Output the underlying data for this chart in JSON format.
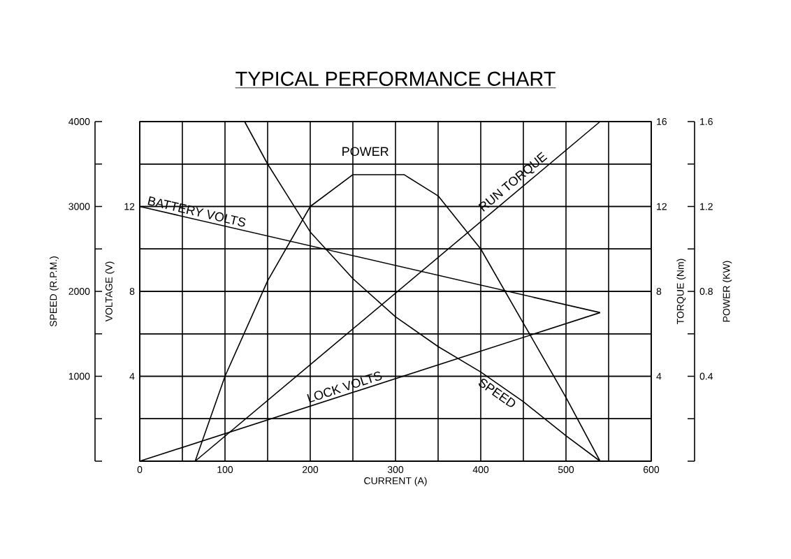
{
  "chart_data": [
    {
      "type": "line",
      "title": "TYPICAL PERFORMANCE CHART",
      "xlabel": "CURRENT (A)",
      "ylabel": "SPEED (R.P.M.)",
      "y2label": "VOLTAGE (V)",
      "xlim": [
        0,
        600
      ],
      "xticks": [
        0,
        {
          "value": 50,
          "label": null
        },
        100,
        {
          "value": 150,
          "label": null
        },
        200,
        {
          "value": 250,
          "label": null
        },
        300,
        {
          "value": 350,
          "label": null
        },
        400,
        {
          "value": 450,
          "label": null
        },
        500,
        {
          "value": 550,
          "label": null
        },
        600
      ],
      "ylim": [
        0,
        4000
      ],
      "yticks": [
        {
          "value": 0,
          "label": null
        },
        {
          "value": 500,
          "label": null
        },
        1000,
        {
          "value": 1500,
          "label": null
        },
        2000,
        {
          "value": 2500,
          "label": null
        },
        3000,
        {
          "value": 3500,
          "label": null
        },
        4000
      ],
      "y2lim": [
        0,
        16
      ],
      "y2ticks": [
        4,
        8,
        12
      ],
      "grid": true,
      "marker": "none",
      "line_style": "solid",
      "series": [
        {
          "name": "SPEED",
          "color": "#000000",
          "x": [
            123,
            150,
            200,
            250,
            300,
            350,
            400,
            450,
            500,
            540
          ],
          "values": [
            4000,
            3500,
            2700,
            2150,
            1700,
            1350,
            1050,
            700,
            300,
            0
          ]
        },
        {
          "name": "BATTERY VOLTS",
          "color": "#000000",
          "axis": "y2",
          "x": [
            0,
            540
          ],
          "values": [
            12,
            7
          ]
        },
        {
          "name": "LOCK VOLTS",
          "color": "#000000",
          "axis": "y2",
          "x": [
            0,
            540
          ],
          "values": [
            0,
            7
          ]
        }
      ]
    },
    {
      "type": "line",
      "ylabel": "POWER (KW)",
      "y2label": "TORQUE (Nm)",
      "tick_labels": "y",
      "grid": "y",
      "xlim": [
        0,
        600
      ],
      "ylim": [
        0,
        1.6
      ],
      "yticks": [
        {
          "value": 0,
          "label": null
        },
        {
          "value": 0.2,
          "label": null
        },
        0.4,
        {
          "value": 0.6,
          "label": null
        },
        0.8,
        {
          "value": 1.0,
          "label": null
        },
        1.2,
        {
          "value": 1.4,
          "label": null
        },
        1.6
      ],
      "y2lim": [
        0,
        16
      ],
      "y2ticks": [
        4,
        8,
        12,
        16
      ],
      "marker": "none",
      "line_style": "solid",
      "series": [
        {
          "name": "RUN TORQUE",
          "color": "#000000",
          "axis": "y2",
          "x": [
            65,
            540
          ],
          "values": [
            0,
            16
          ]
        },
        {
          "name": "POWER",
          "color": "#000000",
          "x": [
            65,
            100,
            150,
            200,
            250,
            280,
            310,
            350,
            380,
            400,
            450,
            500,
            540
          ],
          "values": [
            0,
            0.4,
            0.85,
            1.2,
            1.35,
            1.35,
            1.35,
            1.25,
            1.1,
            1.0,
            0.65,
            0.3,
            0
          ]
        }
      ]
    }
  ]
}
